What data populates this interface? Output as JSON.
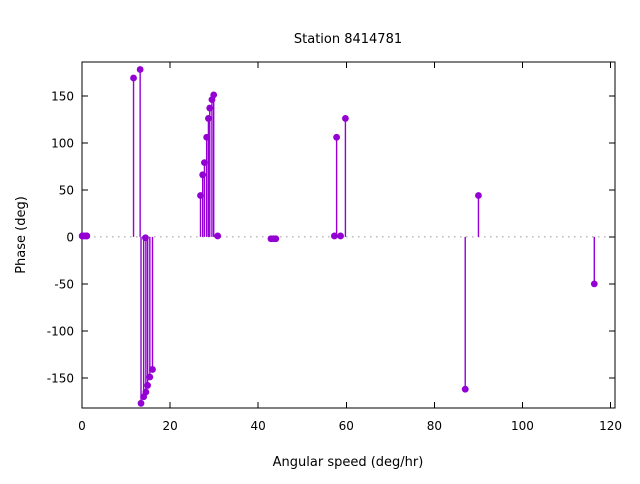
{
  "chart_data": {
    "type": "scatter",
    "style": "impulses-with-points (stem plot)",
    "title": "Station 8414781",
    "xlabel": "Angular speed (deg/hr)",
    "ylabel": "Phase (deg)",
    "xlim": [
      0,
      121
    ],
    "ylim": [
      -182,
      186
    ],
    "xticks": [
      0,
      20,
      40,
      60,
      80,
      100,
      120
    ],
    "yticks": [
      -150,
      -100,
      -50,
      0,
      50,
      100,
      150
    ],
    "zero_line": {
      "show": true,
      "color": "#999999",
      "style": "dotted"
    },
    "marker": "filled-circle",
    "marker_color": "#9400d3",
    "grid": false,
    "legend": "none",
    "points": [
      [
        0.04,
        1
      ],
      [
        0.08,
        1
      ],
      [
        0.54,
        1
      ],
      [
        1.02,
        1
      ],
      [
        1.1,
        1
      ],
      [
        11.7,
        169
      ],
      [
        13.2,
        178
      ],
      [
        13.4,
        -177
      ],
      [
        14.0,
        -170
      ],
      [
        14.4,
        -1
      ],
      [
        14.5,
        -165
      ],
      [
        14.9,
        -158
      ],
      [
        15.4,
        -149
      ],
      [
        16.0,
        -141
      ],
      [
        26.9,
        44
      ],
      [
        27.4,
        66
      ],
      [
        27.8,
        79
      ],
      [
        28.3,
        106
      ],
      [
        28.7,
        126
      ],
      [
        29.0,
        137
      ],
      [
        29.5,
        146
      ],
      [
        29.9,
        151
      ],
      [
        30.8,
        1
      ],
      [
        42.9,
        -2
      ],
      [
        43.5,
        -2
      ],
      [
        44.0,
        -2
      ],
      [
        57.3,
        1
      ],
      [
        57.8,
        106
      ],
      [
        58.7,
        1
      ],
      [
        59.8,
        126
      ],
      [
        87.0,
        -162
      ],
      [
        90.0,
        44
      ],
      [
        116.3,
        -50
      ]
    ]
  }
}
